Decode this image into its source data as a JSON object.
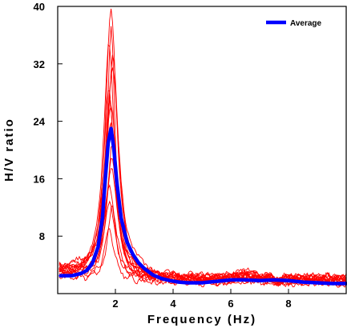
{
  "chart_data": {
    "type": "line",
    "xlabel": "Frequency (Hz)",
    "ylabel": "H/V ratio",
    "xlim": [
      0,
      10
    ],
    "ylim": [
      0,
      40
    ],
    "x_ticks": [
      2,
      4,
      6,
      8
    ],
    "y_ticks": [
      8,
      16,
      24,
      32,
      40
    ],
    "x_tick_labels": [
      "2",
      "4",
      "6",
      "8"
    ],
    "y_tick_labels": [
      "8",
      "16",
      "24",
      "32",
      "40"
    ],
    "grid": false,
    "legend": {
      "placement": "top-right",
      "entries": [
        "Average"
      ]
    },
    "colors": {
      "individual": "#ff0000",
      "average": "#0000ff"
    },
    "peak_frequency_hz": 1.85,
    "average": {
      "name": "Average",
      "x": [
        0.1,
        0.5,
        0.8,
        1.0,
        1.2,
        1.4,
        1.55,
        1.65,
        1.75,
        1.85,
        1.95,
        2.05,
        2.2,
        2.4,
        2.6,
        2.8,
        3.0,
        3.3,
        3.6,
        3.9,
        4.2,
        4.5,
        5.0,
        5.5,
        6.0,
        6.5,
        7.0,
        7.5,
        8.0,
        8.5,
        9.0,
        9.5,
        10.0
      ],
      "y": [
        2.5,
        2.5,
        2.8,
        3.2,
        4.2,
        6.5,
        10.5,
        16.0,
        21.0,
        23.0,
        20.0,
        15.5,
        10.5,
        7.2,
        5.5,
        4.3,
        3.5,
        2.6,
        2.1,
        1.8,
        1.6,
        1.5,
        1.5,
        1.7,
        1.9,
        1.9,
        1.8,
        1.9,
        1.8,
        1.6,
        1.5,
        1.4,
        1.4
      ]
    },
    "individual_peaks": [
      40,
      37,
      35,
      33,
      31,
      29,
      27,
      26,
      24,
      22,
      21,
      19,
      17,
      15,
      13,
      12,
      9
    ]
  }
}
